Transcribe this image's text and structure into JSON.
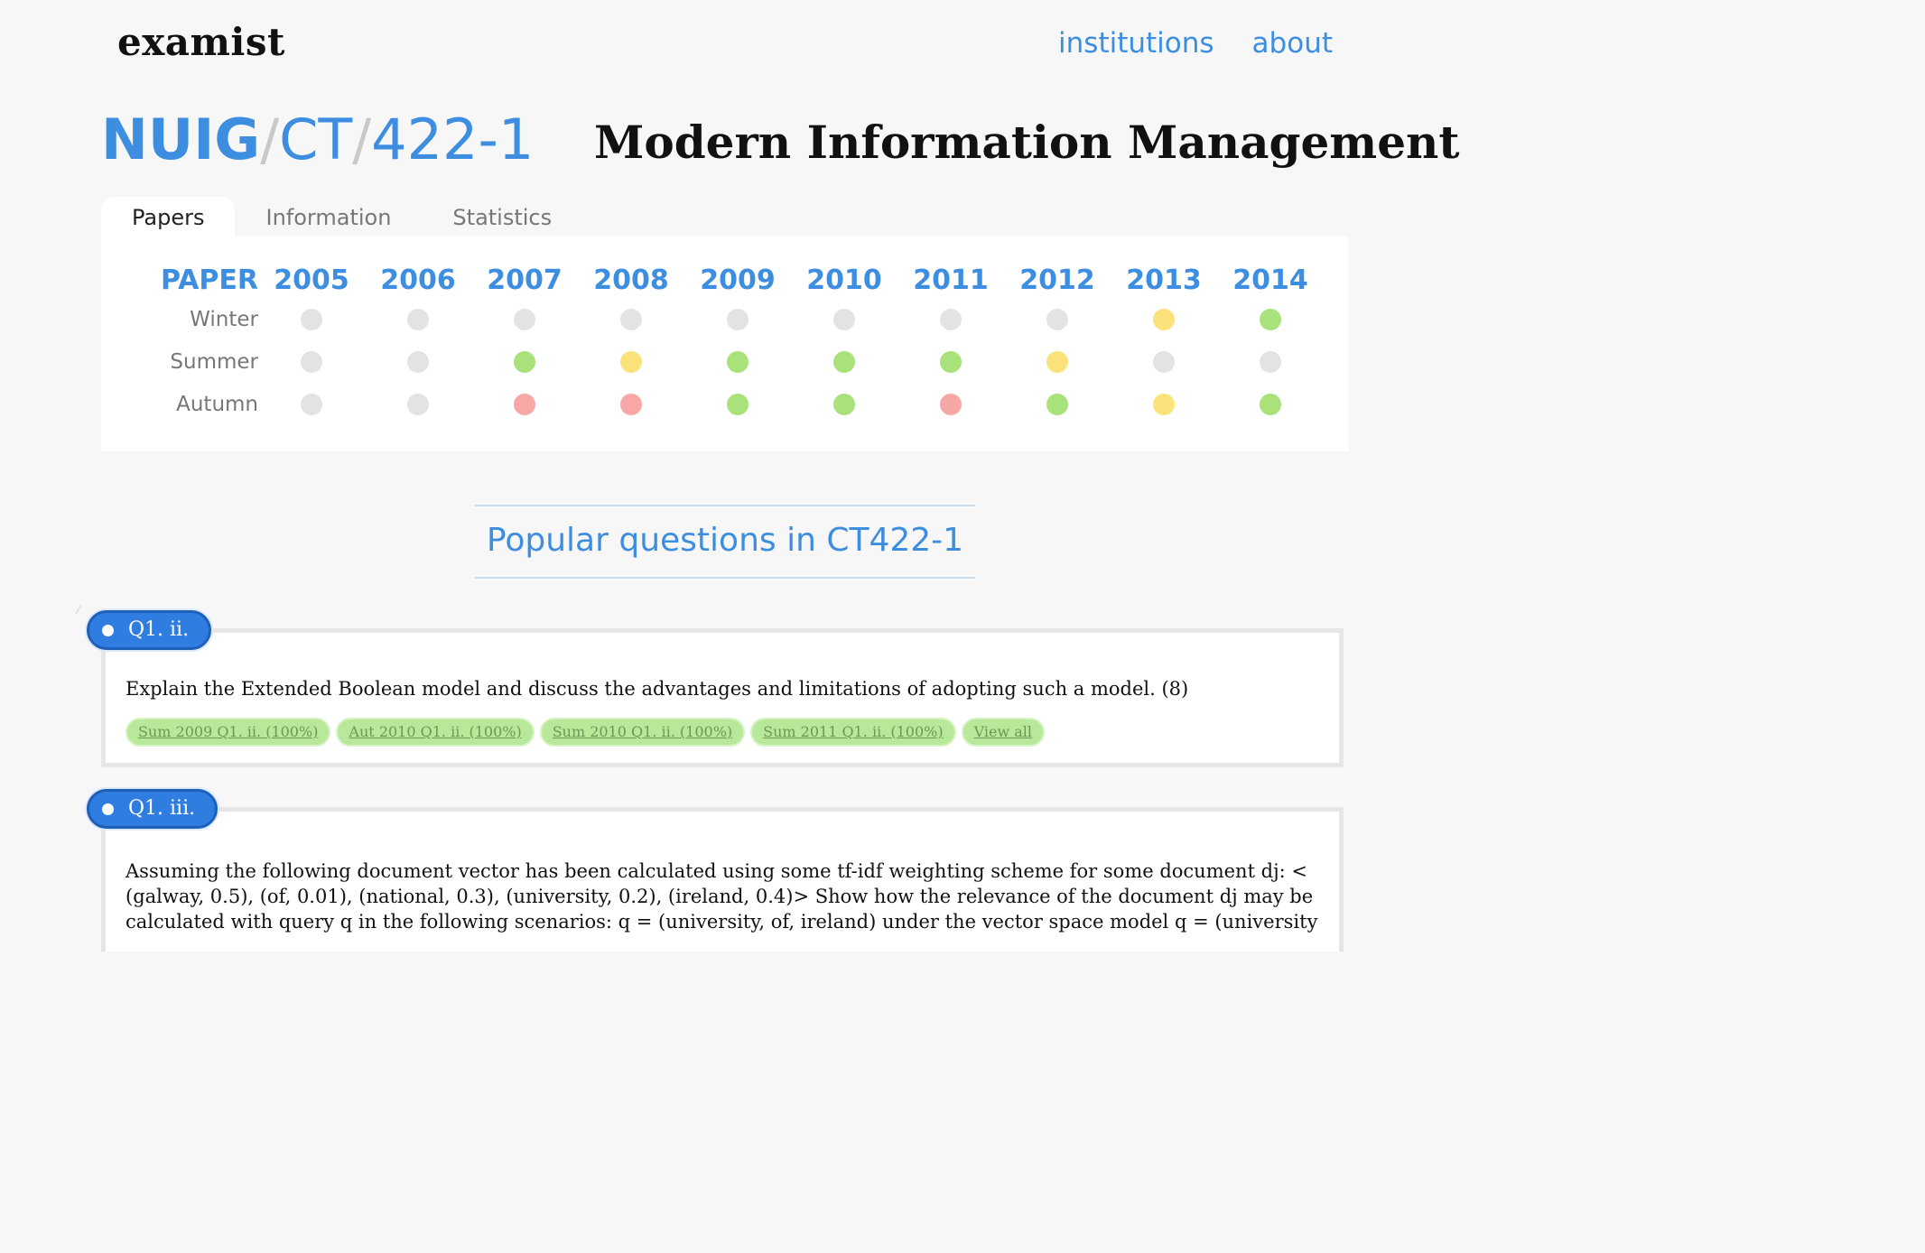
{
  "header": {
    "brand": "examist",
    "nav": [
      {
        "label": "institutions"
      },
      {
        "label": "about"
      }
    ]
  },
  "breadcrumb": {
    "institution": "NUIG",
    "dept": "CT",
    "course": "422-1",
    "separator": "/"
  },
  "course_title": "Modern Information Management",
  "tabs": [
    {
      "label": "Papers",
      "active": true
    },
    {
      "label": "Information"
    },
    {
      "label": "Statistics"
    }
  ],
  "papers": {
    "corner_label": "PAPER",
    "years": [
      "2005",
      "2006",
      "2007",
      "2008",
      "2009",
      "2010",
      "2011",
      "2012",
      "2013",
      "2014"
    ],
    "rows": [
      {
        "session": "Winter",
        "status": [
          "none",
          "none",
          "none",
          "none",
          "none",
          "none",
          "none",
          "none",
          "partial",
          "complete"
        ]
      },
      {
        "session": "Summer",
        "status": [
          "none",
          "none",
          "complete",
          "partial",
          "complete",
          "complete",
          "complete",
          "partial",
          "none",
          "none"
        ]
      },
      {
        "session": "Autumn",
        "status": [
          "none",
          "none",
          "missing",
          "missing",
          "complete",
          "complete",
          "missing",
          "complete",
          "partial",
          "complete"
        ]
      }
    ],
    "status_colors": {
      "none": "#e3e3e3",
      "complete": "#a9e27a",
      "partial": "#fbe27a",
      "missing": "#f8a7a7"
    }
  },
  "popular_heading": "Popular questions in CT422-1",
  "questions": [
    {
      "tag": "Q1. ii.",
      "text": "Explain the Extended Boolean model and discuss the advantages and limitations of adopting such a model. (8)",
      "chips": [
        "Sum 2009 Q1. ii. (100%)",
        "Aut 2010 Q1. ii. (100%)",
        "Sum 2010 Q1. ii. (100%)",
        "Sum 2011 Q1. ii. (100%)",
        "View all"
      ]
    },
    {
      "tag": "Q1. iii.",
      "text": "Assuming the following document vector has been calculated using some tf-idf weighting scheme for some document dj: < (galway, 0.5), (of, 0.01), (national, 0.3), (university, 0.2), (ireland, 0.4)> Show how the relevance of the document dj may be calculated with query q in the following scenarios: q = (university, of, ireland) under the vector space model q = (university",
      "chips": []
    }
  ]
}
